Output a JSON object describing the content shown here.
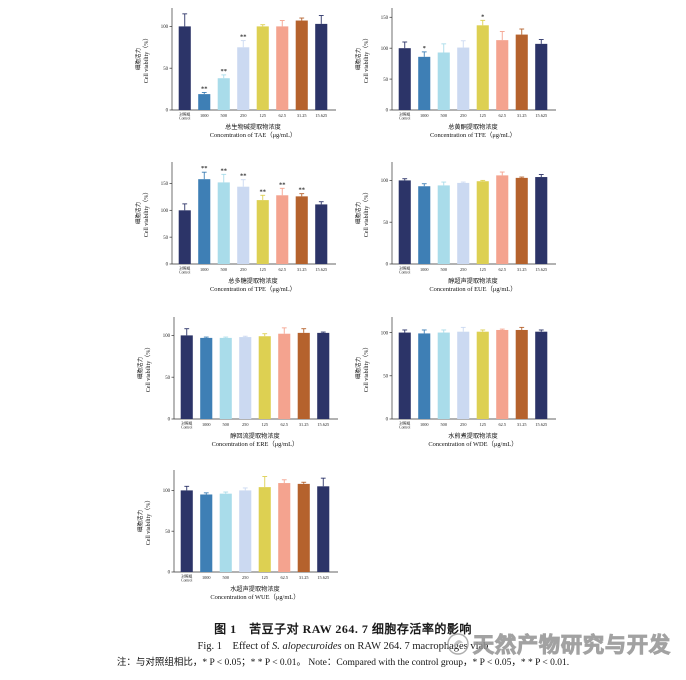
{
  "caption": {
    "title_cn": "图 1　苦豆子对 RAW 264. 7 细胞存活率的影响",
    "fig_prefix": "Fig. 1　Effect of ",
    "species_italic": "S. alopecuroides",
    "fig_suffix": " on RAW 264. 7 macrophages viab",
    "note": "注：与对照组相比，* P < 0.05；* * P < 0.01。 Note：Compared with the control group，* P < 0.05，* * P < 0.01."
  },
  "watermark": {
    "text": "天然产物研究与开发",
    "logo": "circle-swirl-logo",
    "color": "#929292"
  },
  "palette": [
    "#2c3468",
    "#3e7fb5",
    "#a9dcea",
    "#cbd9f1",
    "#ddd052",
    "#f4a38f",
    "#b5622d",
    "#2c3468"
  ],
  "axis": {
    "ylabel_cn": "细胞活力",
    "ylabel_en": "Cell viability（%）"
  },
  "chart_data": [
    {
      "id": "chart-tae",
      "type": "bar",
      "xlabel_cn": "总生物碱提取物浓度",
      "xlabel_en": "Concentration of TAE（μg/mL）",
      "ylabel": "Cell viability (%)",
      "categories": [
        "对照组\nControl",
        "1000",
        "500",
        "250",
        "125",
        "62.5",
        "31.25",
        "15.625"
      ],
      "values": [
        100,
        19,
        38,
        75,
        100,
        100,
        107,
        103
      ],
      "errors": [
        15,
        2,
        4,
        8,
        2,
        7,
        3,
        10
      ],
      "sig": [
        "",
        "**",
        "**",
        "**",
        "",
        "",
        "",
        ""
      ],
      "yticks": [
        0,
        50,
        100
      ],
      "ylim": [
        0,
        122
      ],
      "grid": false,
      "legend": "none"
    },
    {
      "id": "chart-tfe",
      "type": "bar",
      "xlabel_cn": "总黄酮提取物浓度",
      "xlabel_en": "Concentration of TFE（μg/mL）",
      "ylabel": "Cell viability (%)",
      "categories": [
        "对照组\nControl",
        "1000",
        "500",
        "250",
        "125",
        "62.5",
        "31.25",
        "15.625"
      ],
      "values": [
        100,
        86,
        93,
        101,
        137,
        113,
        122,
        107
      ],
      "errors": [
        10,
        8,
        14,
        11,
        8,
        14,
        9,
        7
      ],
      "sig": [
        "",
        "*",
        "",
        "",
        "*",
        "",
        "",
        ""
      ],
      "yticks": [
        0,
        50,
        100,
        150
      ],
      "ylim": [
        0,
        165
      ],
      "grid": false,
      "legend": "none"
    },
    {
      "id": "chart-tpe",
      "type": "bar",
      "xlabel_cn": "总多糖提取物浓度",
      "xlabel_en": "Concentration of TPE（μg/mL）",
      "ylabel": "Cell viability (%)",
      "categories": [
        "对照组\nControl",
        "1000",
        "500",
        "250",
        "125",
        "62.5",
        "31.25",
        "15.625"
      ],
      "values": [
        100,
        158,
        152,
        144,
        119,
        128,
        126,
        111
      ],
      "errors": [
        12,
        13,
        15,
        13,
        9,
        13,
        5,
        5
      ],
      "sig": [
        "",
        "**",
        "**",
        "**",
        "**",
        "**",
        "**",
        ""
      ],
      "yticks": [
        0,
        50,
        100,
        150
      ],
      "ylim": [
        0,
        190
      ],
      "grid": false,
      "legend": "none"
    },
    {
      "id": "chart-eue",
      "type": "bar",
      "xlabel_cn": "醇超声提取物浓度",
      "xlabel_en": "Concentration of EUE（μg/mL）",
      "ylabel": "Cell viability (%)",
      "categories": [
        "对照组\nControl",
        "1000",
        "500",
        "250",
        "125",
        "62.5",
        "31.25",
        "15.625"
      ],
      "values": [
        100,
        93,
        94,
        97,
        99,
        106,
        103,
        104
      ],
      "errors": [
        2,
        3,
        4,
        1,
        1,
        4,
        1,
        3
      ],
      "sig": [
        "",
        "",
        "",
        "",
        "",
        "",
        "",
        ""
      ],
      "yticks": [
        0,
        50,
        100
      ],
      "ylim": [
        0,
        122
      ],
      "grid": false,
      "legend": "none"
    },
    {
      "id": "chart-ere",
      "type": "bar",
      "xlabel_cn": "醇回流提取物浓度",
      "xlabel_en": "Concentration of ERE（μg/mL）",
      "ylabel": "Cell viability (%)",
      "categories": [
        "对照组\nControl",
        "1000",
        "500",
        "250",
        "125",
        "62.5",
        "31.25",
        "15.625"
      ],
      "values": [
        100,
        97,
        97,
        98,
        99,
        102,
        103,
        103
      ],
      "errors": [
        8,
        1,
        1,
        1,
        3,
        7,
        5,
        1
      ],
      "sig": [
        "",
        "",
        "",
        "",
        "",
        "",
        "",
        ""
      ],
      "yticks": [
        0,
        50,
        100
      ],
      "ylim": [
        0,
        122
      ],
      "grid": false,
      "legend": "none"
    },
    {
      "id": "chart-wde",
      "type": "bar",
      "xlabel_cn": "水煎煮提取物浓度",
      "xlabel_en": "Concentration of WDE（μg/mL）",
      "ylabel": "Cell viability (%)",
      "categories": [
        "对照组\nControl",
        "1000",
        "500",
        "250",
        "125",
        "62.5",
        "31.25",
        "15.625"
      ],
      "values": [
        100,
        99,
        100,
        101,
        101,
        103,
        103,
        101
      ],
      "errors": [
        3,
        4,
        3,
        5,
        2,
        1,
        3,
        2
      ],
      "sig": [
        "",
        "",
        "",
        "",
        "",
        "",
        "",
        ""
      ],
      "yticks": [
        0,
        50,
        100
      ],
      "ylim": [
        0,
        118
      ],
      "grid": false,
      "legend": "none"
    },
    {
      "id": "chart-wue",
      "type": "bar",
      "xlabel_cn": "水超声提取物浓度",
      "xlabel_en": "Concentration of WUE（μg/mL）",
      "ylabel": "Cell viability (%)",
      "categories": [
        "对照组\nControl",
        "1000",
        "500",
        "250",
        "125",
        "62.5",
        "31.25",
        "15.625"
      ],
      "values": [
        100,
        95,
        96,
        100,
        104,
        109,
        108,
        105
      ],
      "errors": [
        5,
        2,
        2,
        3,
        13,
        4,
        2,
        10
      ],
      "sig": [
        "",
        "",
        "",
        "",
        "",
        "",
        "",
        ""
      ],
      "yticks": [
        0,
        50,
        100
      ],
      "ylim": [
        0,
        125
      ],
      "grid": false,
      "legend": "none"
    }
  ]
}
